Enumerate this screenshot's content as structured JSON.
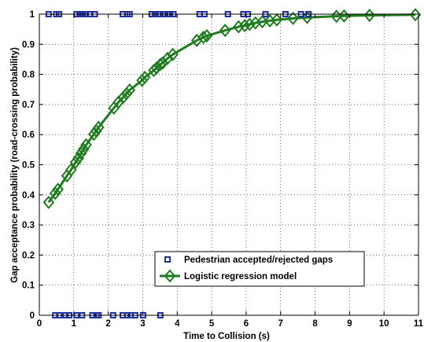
{
  "chart_data": {
    "type": "scatter",
    "xlabel": "Time to Collision (s)",
    "ylabel": "Gap acceptance probability (road-crossing probability)",
    "xlim": [
      0,
      11
    ],
    "ylim": [
      0,
      1
    ],
    "xticks": [
      0,
      1,
      2,
      3,
      4,
      5,
      6,
      7,
      8,
      9,
      10,
      11
    ],
    "yticks": [
      0,
      0.1,
      0.2,
      0.3,
      0.4,
      0.5,
      0.6,
      0.7,
      0.8,
      0.9,
      1
    ],
    "xtick_labels": [
      "0",
      "1",
      "2",
      "3",
      "4",
      "5",
      "6",
      "7",
      "8",
      "9",
      "10",
      "11"
    ],
    "ytick_labels": [
      "0",
      "0.1",
      "0.2",
      "0.3",
      "0.4",
      "0.5",
      "0.6",
      "0.7",
      "0.8",
      "0.9",
      "1"
    ],
    "grid": true,
    "legend_position": "bottom-right",
    "series": [
      {
        "name": "Pedestrian accepted/rejected gaps",
        "kind": "scatter",
        "marker": "square",
        "color": "#1f2f9f",
        "points": [
          [
            0.27,
            1
          ],
          [
            0.49,
            1
          ],
          [
            0.57,
            1
          ],
          [
            1.08,
            1
          ],
          [
            1.17,
            1
          ],
          [
            1.26,
            1
          ],
          [
            1.35,
            1
          ],
          [
            1.46,
            1
          ],
          [
            1.61,
            1
          ],
          [
            2.42,
            1
          ],
          [
            2.55,
            1
          ],
          [
            2.62,
            1
          ],
          [
            3.26,
            1
          ],
          [
            3.36,
            1
          ],
          [
            3.45,
            1
          ],
          [
            3.51,
            1
          ],
          [
            3.62,
            1
          ],
          [
            3.72,
            1
          ],
          [
            3.79,
            1
          ],
          [
            3.89,
            1
          ],
          [
            4.65,
            1
          ],
          [
            4.79,
            1
          ],
          [
            5.47,
            1
          ],
          [
            5.92,
            1
          ],
          [
            6.05,
            1
          ],
          [
            6.56,
            1
          ],
          [
            7.14,
            1
          ],
          [
            7.59,
            1
          ],
          [
            7.81,
            1
          ],
          [
            0.46,
            0
          ],
          [
            0.58,
            0
          ],
          [
            0.76,
            0
          ],
          [
            0.87,
            0
          ],
          [
            1.08,
            0
          ],
          [
            1.24,
            0
          ],
          [
            1.54,
            0
          ],
          [
            1.66,
            0
          ],
          [
            1.72,
            0
          ],
          [
            2.14,
            0
          ],
          [
            2.42,
            0
          ],
          [
            2.55,
            0
          ],
          [
            2.65,
            0
          ],
          [
            2.78,
            0
          ],
          [
            3.01,
            0
          ],
          [
            3.51,
            0
          ]
        ]
      },
      {
        "name": "Logistic regression model",
        "kind": "line",
        "marker": "diamond",
        "color": "#1e7b1e",
        "points": [
          [
            0.27,
            0.375
          ],
          [
            0.46,
            0.405
          ],
          [
            0.54,
            0.418
          ],
          [
            0.8,
            0.463
          ],
          [
            0.92,
            0.483
          ],
          [
            1.05,
            0.508
          ],
          [
            1.13,
            0.521
          ],
          [
            1.21,
            0.538
          ],
          [
            1.28,
            0.551
          ],
          [
            1.36,
            0.566
          ],
          [
            1.58,
            0.601
          ],
          [
            1.65,
            0.612
          ],
          [
            1.72,
            0.624
          ],
          [
            2.16,
            0.688
          ],
          [
            2.3,
            0.708
          ],
          [
            2.43,
            0.723
          ],
          [
            2.53,
            0.736
          ],
          [
            2.62,
            0.748
          ],
          [
            2.98,
            0.78
          ],
          [
            3.06,
            0.79
          ],
          [
            3.32,
            0.813
          ],
          [
            3.4,
            0.821
          ],
          [
            3.51,
            0.833
          ],
          [
            3.58,
            0.838
          ],
          [
            3.72,
            0.853
          ],
          [
            3.87,
            0.866
          ],
          [
            4.57,
            0.913
          ],
          [
            4.76,
            0.923
          ],
          [
            4.86,
            0.928
          ],
          [
            5.39,
            0.946
          ],
          [
            5.78,
            0.958
          ],
          [
            5.96,
            0.962
          ],
          [
            6.1,
            0.966
          ],
          [
            6.27,
            0.971
          ],
          [
            6.47,
            0.975
          ],
          [
            6.69,
            0.978
          ],
          [
            6.89,
            0.981
          ],
          [
            7.36,
            0.986
          ],
          [
            7.77,
            0.989
          ],
          [
            8.62,
            0.993
          ],
          [
            8.84,
            0.994
          ],
          [
            9.58,
            0.996
          ],
          [
            10.91,
            0.998
          ]
        ]
      }
    ]
  }
}
